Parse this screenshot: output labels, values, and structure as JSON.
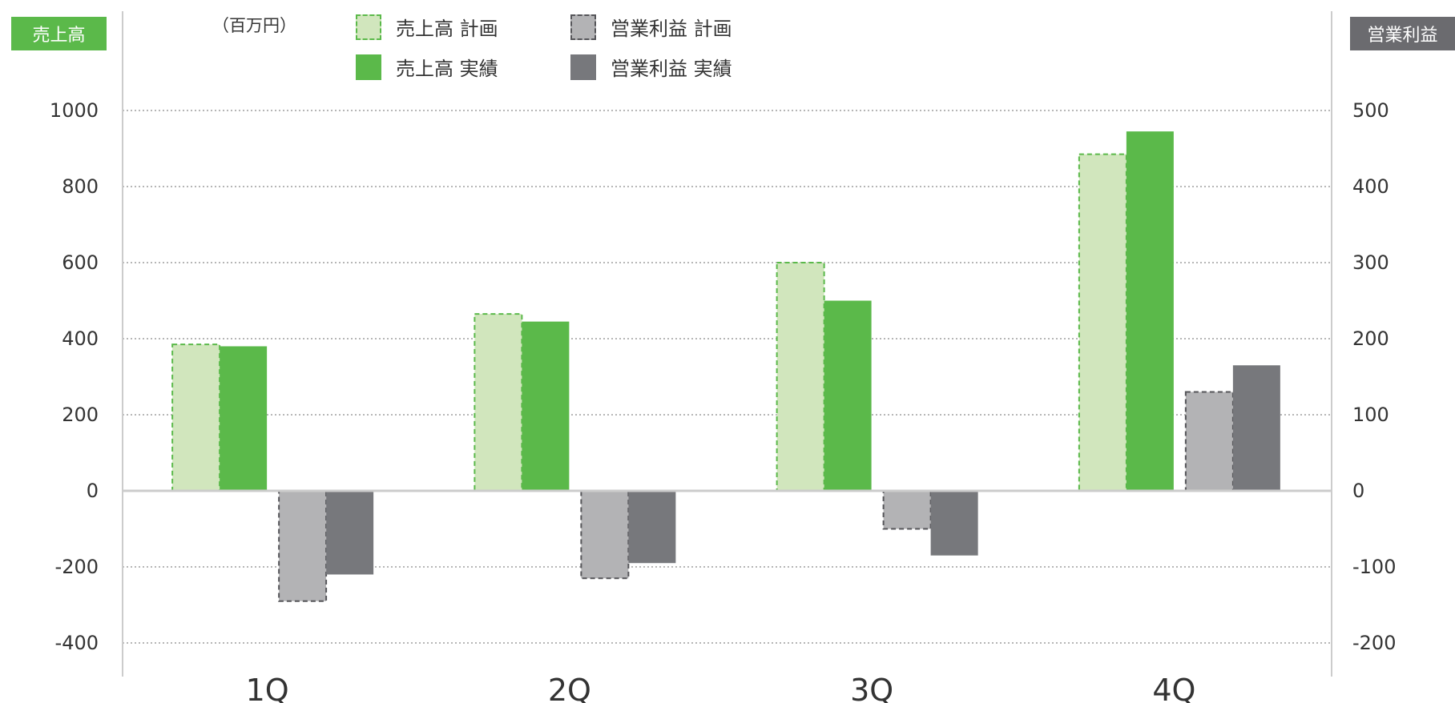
{
  "left_axis_badge": "売上高",
  "right_axis_badge": "営業利益",
  "unit_label": "（百万円）",
  "legend": [
    {
      "label": "売上高 計画",
      "key": "sales_plan"
    },
    {
      "label": "売上高 実績",
      "key": "sales_actual"
    },
    {
      "label": "営業利益 計画",
      "key": "op_plan"
    },
    {
      "label": "営業利益 実績",
      "key": "op_actual"
    }
  ],
  "colors": {
    "sales_plan_fill": "#d1e6bd",
    "sales_plan_border": "#5bb94a",
    "sales_actual": "#5bb94a",
    "op_plan_fill": "#b3b3b5",
    "op_plan_border": "#555559",
    "op_actual": "#77787c",
    "grid": "#8a8a8a",
    "axis": "#cccccc",
    "tick_text": "#333333"
  },
  "chart_data": {
    "type": "bar",
    "categories": [
      "1Q",
      "2Q",
      "3Q",
      "4Q"
    ],
    "left_axis": {
      "ylim": [
        -400,
        1000
      ],
      "ticks": [
        1000,
        800,
        600,
        400,
        200,
        0,
        -200,
        -400
      ]
    },
    "right_axis": {
      "ylim": [
        -200,
        500
      ],
      "ticks": [
        500,
        400,
        300,
        200,
        100,
        0,
        -100,
        -200
      ]
    },
    "series": [
      {
        "name": "売上高 計画",
        "axis": "left",
        "style": "dashed",
        "values": [
          385,
          465,
          600,
          885
        ]
      },
      {
        "name": "売上高 実績",
        "axis": "left",
        "style": "solid",
        "values": [
          380,
          445,
          500,
          945
        ]
      },
      {
        "name": "営業利益 計画",
        "axis": "right",
        "style": "dashed",
        "values": [
          -145,
          -115,
          -50,
          130
        ]
      },
      {
        "name": "営業利益 実績",
        "axis": "right",
        "style": "solid",
        "values": [
          -110,
          -95,
          -85,
          165
        ]
      }
    ],
    "grid": true,
    "grid_style": "dotted",
    "legend_position": "top"
  }
}
